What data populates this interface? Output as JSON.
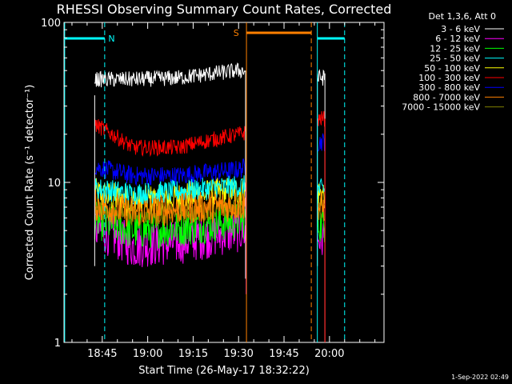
{
  "chart_data": {
    "type": "line",
    "title": "RHESSI Observing Summary Count Rates, Corrected",
    "xlabel": "Start Time (26-May-17 18:32:22)",
    "ylabel": "Corrected Count Rate (s⁻¹ detector⁻¹)",
    "yscale": "log",
    "ylim": [
      1,
      100
    ],
    "xlim_minutes": [
      1112.37,
      1218.0
    ],
    "x_ticks": [
      {
        "label": "18:45",
        "minute": 1125
      },
      {
        "label": "19:00",
        "minute": 1140
      },
      {
        "label": "19:15",
        "minute": 1155
      },
      {
        "label": "19:30",
        "minute": 1170
      },
      {
        "label": "19:45",
        "minute": 1185
      },
      {
        "label": "20:00",
        "minute": 1200
      }
    ],
    "y_ticks": [
      {
        "label": "1",
        "value": 1
      },
      {
        "label": "10",
        "value": 10
      },
      {
        "label": "100",
        "value": 100
      }
    ],
    "legend_title": "Det 1,3,6, Att 0",
    "legend_position": "right",
    "data_gap_minutes": [
      1172,
      1195
    ],
    "series": [
      {
        "name": "3 - 6 keV",
        "color": "#ffffff",
        "levels": [
          44,
          44,
          45,
          50,
          45
        ],
        "noise": 0.05
      },
      {
        "name": "6 - 12 keV",
        "color": "#ff00ff",
        "levels": [
          5.2,
          4.0,
          4.2,
          5.0,
          4.5
        ],
        "noise": 0.14
      },
      {
        "name": "12 - 25 keV",
        "color": "#00ff00",
        "levels": [
          5.8,
          5.0,
          5.2,
          5.8,
          5.5
        ],
        "noise": 0.12
      },
      {
        "name": "25 - 50 keV",
        "color": "#00ffff",
        "levels": [
          9.2,
          8.5,
          8.8,
          9.5,
          9.0
        ],
        "noise": 0.07
      },
      {
        "name": "50 - 100 keV",
        "color": "#ffff00",
        "levels": [
          8.5,
          7.5,
          8.0,
          8.8,
          8.5
        ],
        "noise": 0.1
      },
      {
        "name": "100 - 300 keV",
        "color": "#ff0000",
        "levels": [
          23,
          16.5,
          16.5,
          20,
          25
        ],
        "noise": 0.05
      },
      {
        "name": "300 - 800 keV",
        "color": "#0000ff",
        "levels": [
          12.5,
          11,
          11,
          12,
          18
        ],
        "noise": 0.06
      },
      {
        "name": "800 - 7000 keV",
        "color": "#ff8000",
        "levels": [
          7.2,
          6.5,
          6.8,
          7.2,
          7.0
        ],
        "noise": 0.1
      },
      {
        "name": "7000 - 15000 keV",
        "color": "#808000",
        "levels": [
          6.8,
          6.2,
          6.4,
          6.9,
          6.6
        ],
        "noise": 0.06
      }
    ],
    "annotations": [
      {
        "label": "N",
        "type": "night",
        "color": "#00ffff"
      },
      {
        "label": "S",
        "type": "saa",
        "color": "#ff8000"
      }
    ],
    "footer_date": "1-Sep-2022 02:49"
  }
}
